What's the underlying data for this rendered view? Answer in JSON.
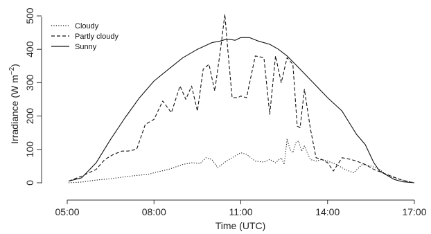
{
  "chart_data": {
    "type": "line",
    "xlabel": "Time (UTC)",
    "ylabel_main": "Irradiance (W m",
    "ylabel_sup": "−2",
    "ylabel_close": ")",
    "xlim": [
      5,
      17
    ],
    "ylim": [
      0,
      520
    ],
    "x_ticks": [
      {
        "value": 5,
        "label": "05:00"
      },
      {
        "value": 8,
        "label": "08:00"
      },
      {
        "value": 11,
        "label": "11:00"
      },
      {
        "value": 14,
        "label": "14:00"
      },
      {
        "value": 17,
        "label": "17:00"
      }
    ],
    "y_ticks": [
      0,
      100,
      200,
      300,
      400,
      500
    ],
    "legend_position": "top-left",
    "series": [
      {
        "name": "Cloudy",
        "style": "dotted",
        "x": [
          5.05,
          5.5,
          6.0,
          6.5,
          7.0,
          7.4,
          7.8,
          8.0,
          8.5,
          9.0,
          9.3,
          9.6,
          9.8,
          10.0,
          10.2,
          10.5,
          10.8,
          11.0,
          11.2,
          11.5,
          11.8,
          12.0,
          12.2,
          12.4,
          12.5,
          12.6,
          12.7,
          12.8,
          12.9,
          13.0,
          13.1,
          13.2,
          13.4,
          13.6,
          13.8,
          14.0,
          14.3,
          14.6,
          14.9,
          15.2,
          15.5,
          15.8,
          16.0,
          16.3,
          16.6,
          16.9,
          17.0
        ],
        "y": [
          0,
          2,
          8,
          12,
          18,
          22,
          25,
          30,
          40,
          55,
          60,
          58,
          75,
          70,
          45,
          65,
          80,
          90,
          85,
          65,
          62,
          70,
          60,
          75,
          55,
          130,
          100,
          90,
          120,
          125,
          95,
          110,
          70,
          65,
          70,
          65,
          55,
          40,
          30,
          55,
          50,
          40,
          25,
          15,
          8,
          2,
          0
        ]
      },
      {
        "name": "Partly cloudy",
        "style": "dashed",
        "x": [
          5.05,
          5.5,
          6.0,
          6.3,
          6.6,
          6.9,
          7.1,
          7.4,
          7.7,
          8.0,
          8.3,
          8.6,
          8.9,
          9.1,
          9.3,
          9.5,
          9.7,
          9.9,
          10.1,
          10.3,
          10.45,
          10.55,
          10.7,
          10.9,
          11.0,
          11.2,
          11.5,
          11.8,
          12.0,
          12.2,
          12.4,
          12.6,
          12.8,
          12.95,
          13.05,
          13.2,
          13.4,
          13.6,
          13.8,
          14.0,
          14.2,
          14.5,
          14.8,
          15.0,
          15.3,
          15.6,
          15.9,
          16.2,
          16.5,
          16.8,
          17.0
        ],
        "y": [
          5,
          20,
          40,
          70,
          85,
          95,
          95,
          100,
          175,
          190,
          245,
          210,
          290,
          250,
          290,
          215,
          340,
          355,
          275,
          400,
          505,
          400,
          255,
          255,
          260,
          255,
          380,
          375,
          205,
          380,
          300,
          375,
          355,
          170,
          165,
          280,
          165,
          75,
          70,
          60,
          35,
          75,
          70,
          65,
          55,
          40,
          30,
          20,
          10,
          3,
          0
        ]
      },
      {
        "name": "Sunny",
        "style": "solid",
        "x": [
          5.05,
          5.5,
          6.0,
          6.5,
          7.0,
          7.5,
          8.0,
          8.5,
          9.0,
          9.5,
          10.0,
          10.3,
          10.5,
          10.6,
          10.8,
          11.0,
          11.3,
          11.6,
          12.0,
          12.3,
          12.6,
          13.0,
          13.5,
          14.0,
          14.5,
          15.0,
          15.3,
          15.6,
          15.8,
          16.0,
          16.3,
          16.6,
          17.0
        ],
        "y": [
          5,
          15,
          60,
          130,
          195,
          255,
          305,
          340,
          375,
          400,
          420,
          425,
          430,
          430,
          427,
          435,
          435,
          425,
          415,
          400,
          380,
          345,
          300,
          255,
          215,
          145,
          115,
          60,
          35,
          25,
          10,
          3,
          0
        ]
      }
    ]
  }
}
